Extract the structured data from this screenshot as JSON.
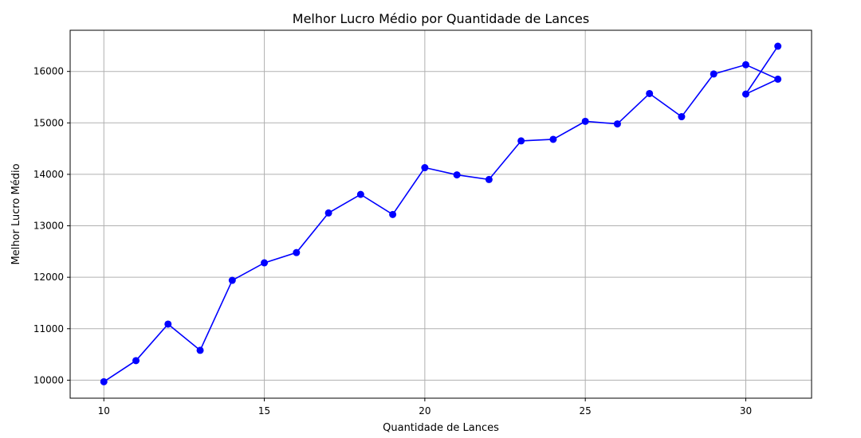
{
  "chart_data": {
    "type": "line",
    "title": "Melhor Lucro Médio por Quantidade de Lances",
    "xlabel": "Quantidade de Lances",
    "ylabel": "Melhor Lucro Médio",
    "xlim": [
      8.95,
      32.05
    ],
    "ylim": [
      9650,
      16800
    ],
    "xticks": [
      10,
      15,
      20,
      25,
      30
    ],
    "yticks": [
      10000,
      11000,
      12000,
      13000,
      14000,
      15000,
      16000
    ],
    "grid": true,
    "color": "#0000ff",
    "marker": "circle",
    "series": [
      {
        "x": [
          10,
          11,
          12,
          13,
          14,
          15,
          16,
          17,
          18,
          19,
          20,
          21,
          22,
          23,
          24,
          25,
          26,
          27,
          28,
          29,
          30,
          31,
          30,
          31
        ],
        "y": [
          9970,
          10380,
          11090,
          10580,
          11940,
          12280,
          12480,
          13250,
          13610,
          13220,
          14130,
          13990,
          13900,
          14650,
          14680,
          15030,
          14980,
          15570,
          15120,
          15950,
          16130,
          15850,
          15560,
          16490
        ]
      }
    ]
  }
}
